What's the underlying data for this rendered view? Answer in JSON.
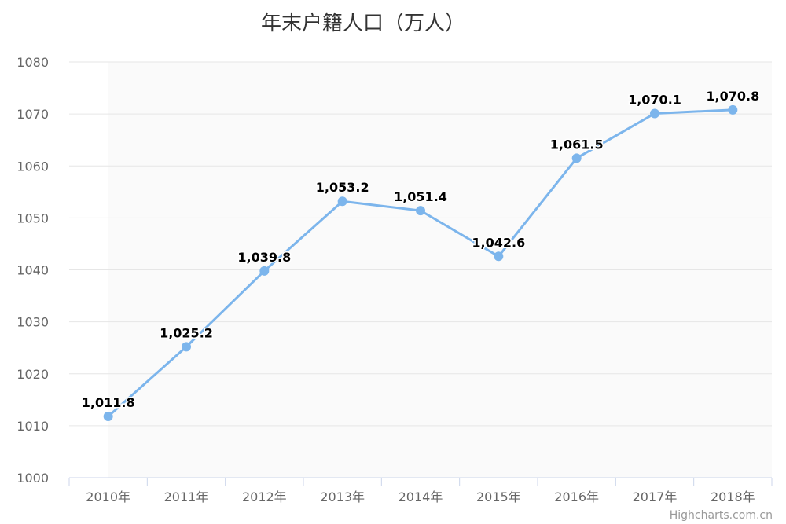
{
  "chart_data": {
    "type": "line",
    "title": "年末户籍人口（万人）",
    "categories": [
      "2010年",
      "2011年",
      "2012年",
      "2013年",
      "2014年",
      "2015年",
      "2016年",
      "2017年",
      "2018年"
    ],
    "series": [
      {
        "values": [
          1011.8,
          1025.2,
          1039.8,
          1053.2,
          1051.4,
          1042.6,
          1061.5,
          1070.1,
          1070.8
        ],
        "labels": [
          "1,011.8",
          "1,025.2",
          "1,039.8",
          "1,053.2",
          "1,051.4",
          "1,042.6",
          "1,061.5",
          "1,070.1",
          "1,070.8"
        ],
        "color": "#7cb5ec"
      }
    ],
    "ylim": [
      1000,
      1080
    ],
    "y_ticks": [
      "1000",
      "1010",
      "1020",
      "1030",
      "1040",
      "1050",
      "1060",
      "1070",
      "1080"
    ],
    "grid": true,
    "legend": "none",
    "xlabel": "",
    "ylabel": ""
  },
  "credit": "Highcharts.com.cn",
  "colors": {
    "grid": "#e6e6e6",
    "axis": "#ccd6eb",
    "band": "#f7f7f7"
  }
}
